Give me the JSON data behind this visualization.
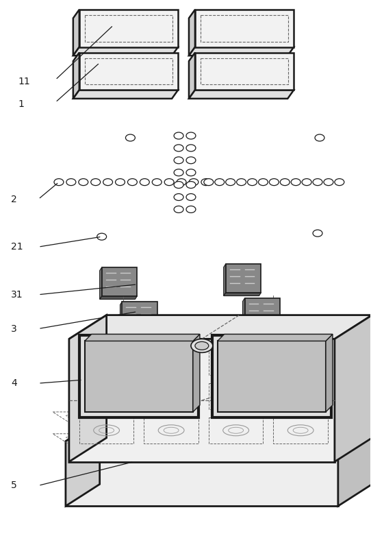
{
  "fig_width": 5.42,
  "fig_height": 7.79,
  "dpi": 100,
  "bg_color": "#ffffff",
  "lc": "#1a1a1a",
  "dc": "#666666",
  "tile_top_fc": "#f2f2f2",
  "tile_side_fc": "#cccccc",
  "tile_front_fc": "#e0e0e0",
  "chassis_top_fc": "#e8e8e8",
  "chassis_front_fc": "#f0f0f0",
  "chassis_left_fc": "#d8d8d8",
  "chassis_inner_fc": "#c8c8c8",
  "board_top_fc": "#e5e5e5",
  "board_front_fc": "#eeeeee",
  "board_left_fc": "#d0d0d0",
  "chip_fc": "#888888",
  "chip_side_fc": "#666666"
}
